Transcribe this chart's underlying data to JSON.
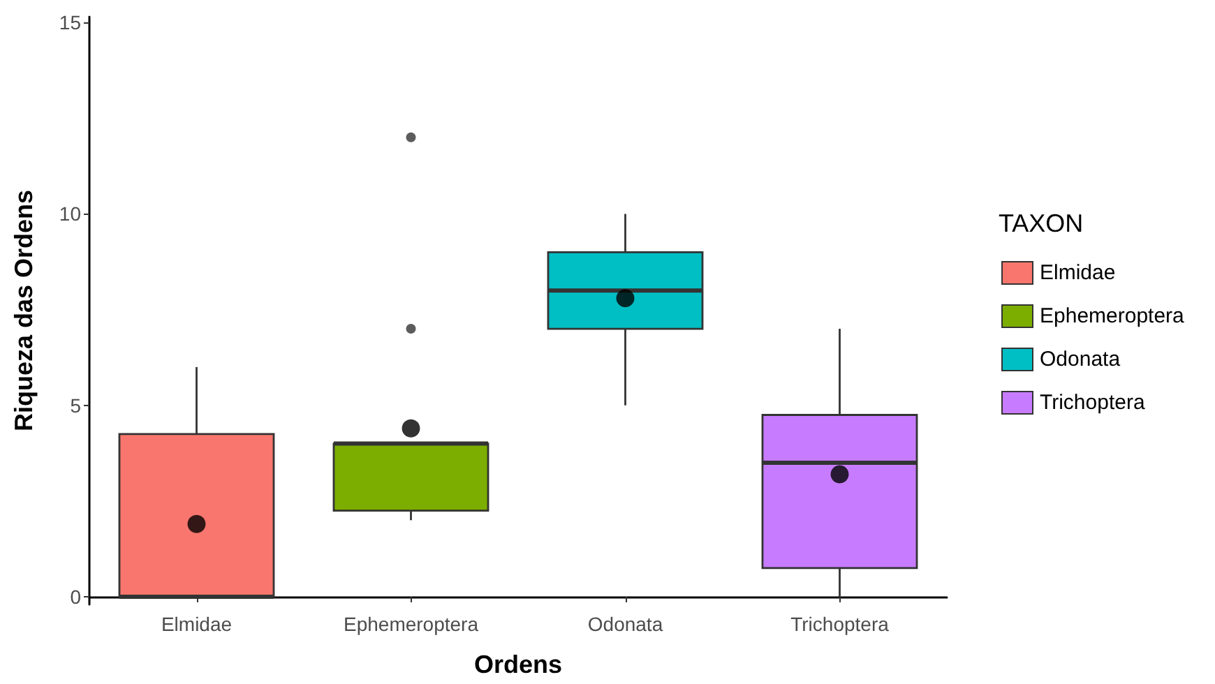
{
  "chart_data": {
    "type": "box",
    "xlabel": "Ordens",
    "ylabel": "Riqueza das Ordens",
    "legend_title": "TAXON",
    "categories": [
      "Elmidae",
      "Ephemeroptera",
      "Odonata",
      "Trichoptera"
    ],
    "series": [
      {
        "name": "Elmidae",
        "color": "#f8766d",
        "boxes": [
          {
            "low": 0,
            "q1": 0,
            "median": 0,
            "q3": 4.25,
            "high": 6,
            "mean": 1.9
          },
          null,
          null,
          null
        ]
      },
      {
        "name": "Ephemeroptera",
        "color": "#7cae00",
        "boxes": [
          null,
          {
            "low": 2,
            "q1": 2.25,
            "median": 4,
            "q3": 4,
            "high": 4,
            "mean": 4.4,
            "outliers": [
              7,
              12
            ]
          },
          null,
          null
        ]
      },
      {
        "name": "Odonata",
        "color": "#00bfc4",
        "boxes": [
          null,
          null,
          {
            "low": 5,
            "q1": 7,
            "median": 8,
            "q3": 9,
            "high": 10,
            "mean": 7.8
          },
          null
        ]
      },
      {
        "name": "Trichoptera",
        "color": "#c77cff",
        "boxes": [
          null,
          null,
          null,
          {
            "low": 0,
            "q1": 0.75,
            "median": 3.5,
            "q3": 4.75,
            "high": 7,
            "mean": 3.2
          }
        ]
      }
    ],
    "ylim": [
      -0.2,
      15.15
    ],
    "yticks": [
      0,
      5,
      10,
      15
    ],
    "grid": false,
    "legend": "right"
  }
}
